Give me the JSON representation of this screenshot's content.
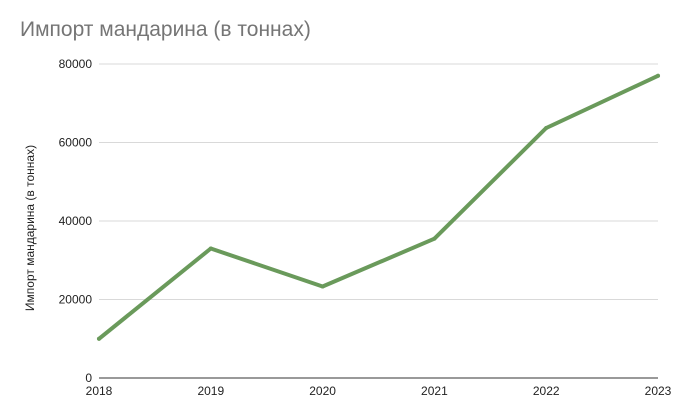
{
  "chart_data": {
    "type": "line",
    "title": "Импорт мандарина (в тоннах)",
    "xlabel": "",
    "ylabel": "Импорт мандарина (в тоннах)",
    "x": [
      "2018",
      "2019",
      "2020",
      "2021",
      "2022",
      "2023"
    ],
    "series": [
      {
        "values": [
          10000,
          33000,
          23300,
          35500,
          63700,
          77000
        ],
        "color": "#6a9a5b"
      }
    ],
    "ylim": [
      0,
      80000
    ],
    "yticks": [
      "0",
      "20000",
      "40000",
      "60000",
      "80000"
    ],
    "grid": true,
    "gridline_color": "#d9d9d9",
    "axis_color": "#333333",
    "legend": "none"
  }
}
